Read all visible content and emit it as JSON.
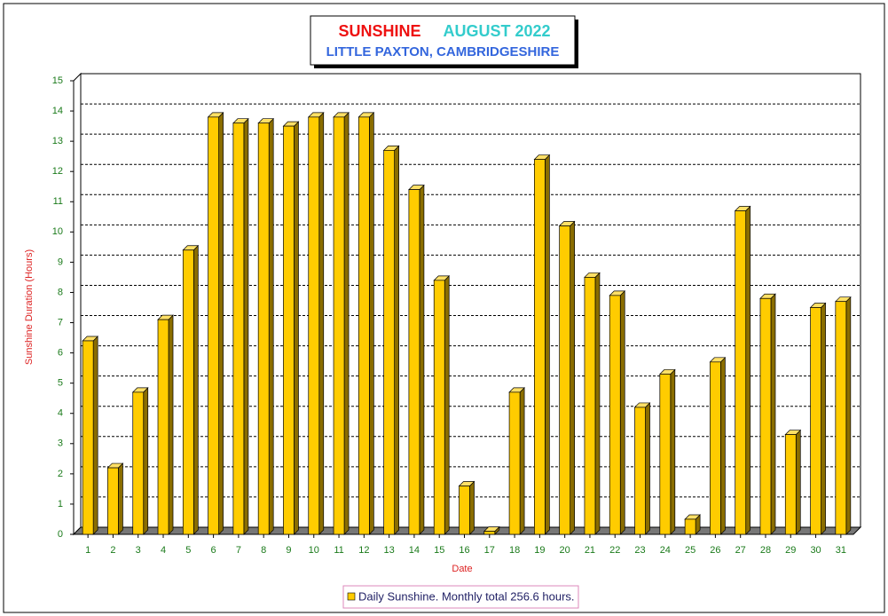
{
  "chart_data": {
    "type": "bar",
    "title": "SUNSHINE",
    "title_color": "#ee1111",
    "title2": "AUGUST 2022",
    "title2_color": "#33cccc",
    "subtitle": "LITTLE PAXTON, CAMBRIDGESHIRE",
    "subtitle_color": "#3366dd",
    "y_label": "Sunshine Duration (Hours)",
    "x_label": "Date",
    "legend": "Daily Sunshine. Monthly total 256.6 hours.",
    "color": "#ffcc00",
    "categories": [
      "1",
      "2",
      "3",
      "4",
      "5",
      "6",
      "7",
      "8",
      "9",
      "10",
      "11",
      "12",
      "13",
      "14",
      "15",
      "16",
      "17",
      "18",
      "19",
      "20",
      "21",
      "22",
      "23",
      "24",
      "25",
      "26",
      "27",
      "28",
      "29",
      "30",
      "31"
    ],
    "values": [
      6.4,
      2.2,
      4.7,
      7.1,
      9.4,
      13.8,
      13.6,
      13.6,
      13.5,
      13.8,
      13.8,
      13.8,
      12.7,
      11.4,
      8.4,
      1.6,
      0.1,
      4.7,
      12.4,
      10.2,
      8.5,
      7.9,
      4.2,
      5.3,
      0.5,
      5.7,
      10.7,
      7.8,
      3.3,
      7.5,
      7.7
    ],
    "ylim": [
      0,
      15
    ],
    "yticks": [
      0,
      1,
      2,
      3,
      4,
      5,
      6,
      7,
      8,
      9,
      10,
      11,
      12,
      13,
      14,
      15
    ],
    "grid": true
  }
}
